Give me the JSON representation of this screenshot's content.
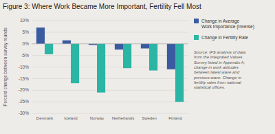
{
  "chart_data": {
    "type": "bar",
    "title": "Figure 3: Where Work Became More Important, Fertility Fell Most",
    "ylabel": "Percent change between survey rounds",
    "categories": [
      "Denmark",
      "Iceland",
      "Norway",
      "Netherlands",
      "Sweden",
      "Finland"
    ],
    "series": [
      {
        "name": "Change in Average\nWork Importance (Inverse)",
        "color": "#3a5ba0",
        "values": [
          7.0,
          1.5,
          -0.5,
          -2.5,
          -2.0,
          -11.0
        ]
      },
      {
        "name": "Change in Fertility Rate",
        "color": "#2ab5a5",
        "values": [
          -4.5,
          -17.0,
          -21.0,
          -10.5,
          -11.5,
          -25.0
        ]
      }
    ],
    "ylim": [
      -30,
      10
    ],
    "yticks": [
      {
        "value": -30,
        "label": "-30%"
      },
      {
        "value": -25,
        "label": "-25%"
      },
      {
        "value": -20,
        "label": "-20%"
      },
      {
        "value": -15,
        "label": "-15%"
      },
      {
        "value": -10,
        "label": "-10%"
      },
      {
        "value": -5,
        "label": "-5%"
      },
      {
        "value": 0,
        "label": "0%"
      },
      {
        "value": 5,
        "label": "5%"
      },
      {
        "value": 10,
        "label": "10%"
      }
    ],
    "grid": true,
    "legend": "right",
    "annotations": [
      "Source: IFS analysis of data\nfrom the Integrated Values\nSurvey listed in Appendix A;\nchange in work attitudes\nbetween latest wave and\nprevious wave. Change in\nfertility rates from national\nstatistical offices."
    ]
  }
}
